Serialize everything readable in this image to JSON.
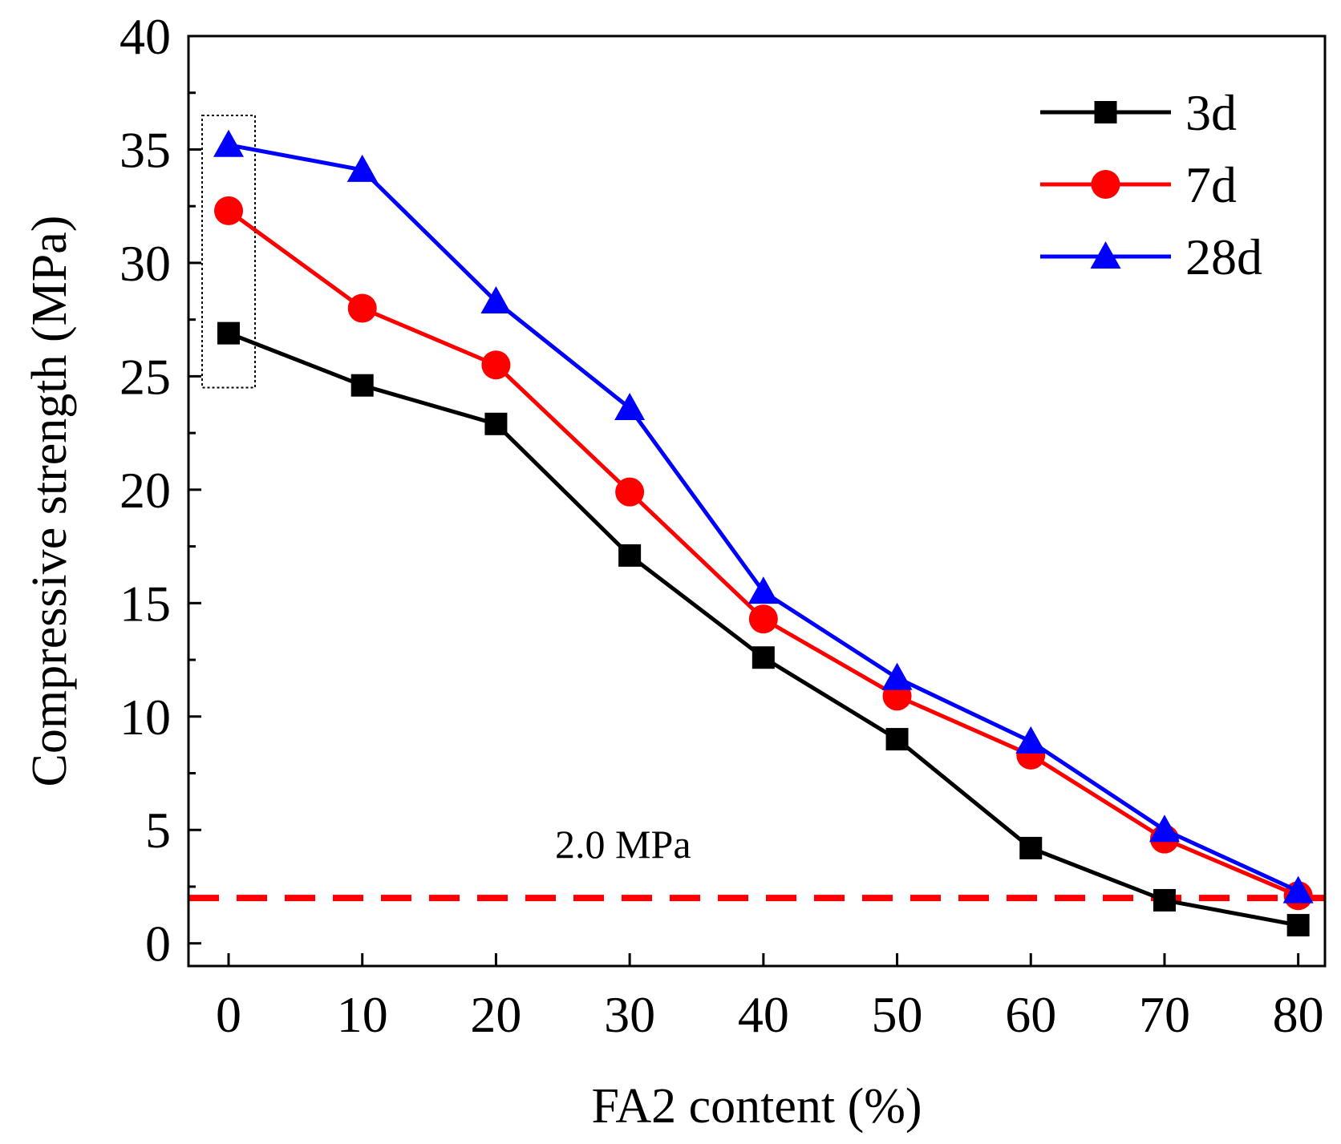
{
  "chart_data": {
    "type": "line",
    "title": "",
    "xlabel": "FA2 content  (%)",
    "ylabel": "Compressive strength (MPa)",
    "x": [
      0,
      10,
      20,
      30,
      40,
      50,
      60,
      70,
      80
    ],
    "xlim": [
      -3,
      82
    ],
    "ylim": [
      -1,
      40
    ],
    "xticks": [
      0,
      10,
      20,
      30,
      40,
      50,
      60,
      70,
      80
    ],
    "yticks": [
      0,
      5,
      10,
      15,
      20,
      25,
      30,
      35,
      40
    ],
    "grid": false,
    "legend_position": "top-right",
    "series": [
      {
        "name": "3d",
        "color": "#000000",
        "marker": "square",
        "values": [
          26.9,
          24.6,
          22.9,
          17.1,
          12.6,
          9.0,
          4.2,
          1.9,
          0.8
        ]
      },
      {
        "name": "7d",
        "color": "#ff0000",
        "marker": "circle",
        "values": [
          32.3,
          28.0,
          25.5,
          19.9,
          14.3,
          10.9,
          8.3,
          4.6,
          2.1
        ]
      },
      {
        "name": "28d",
        "color": "#0000ff",
        "marker": "triangle",
        "values": [
          35.2,
          34.1,
          28.3,
          23.6,
          15.5,
          11.7,
          8.9,
          5.0,
          2.3
        ]
      }
    ],
    "reference_line": {
      "y": 2.0,
      "label": "2.0 MPa",
      "color": "#ff0000",
      "style": "dashed"
    },
    "highlight_box": {
      "x": 0,
      "y_range": [
        24.5,
        36.5
      ],
      "style": "dotted"
    }
  }
}
